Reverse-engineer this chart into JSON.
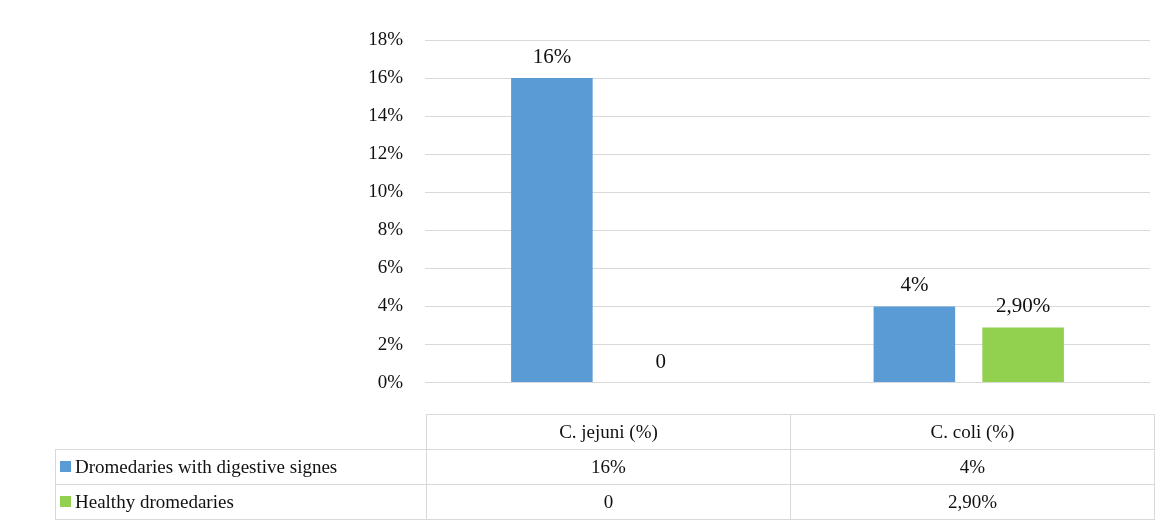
{
  "chart_data": {
    "type": "bar",
    "categories": [
      "C. jejuni (%)",
      "C. coli (%)"
    ],
    "series": [
      {
        "name": "Dromedaries with  digestive signes",
        "color": "#5b9bd5",
        "values": [
          16,
          4
        ],
        "value_labels": [
          "16%",
          "4%"
        ]
      },
      {
        "name": "Healthy dromedaries",
        "color": "#92d050",
        "values": [
          0,
          2.9
        ],
        "value_labels": [
          "0",
          "2,90%"
        ]
      }
    ],
    "ylim": [
      0,
      18
    ],
    "yticks": [
      {
        "value": 0,
        "label": "0%"
      },
      {
        "value": 2,
        "label": "2%"
      },
      {
        "value": 4,
        "label": "4%"
      },
      {
        "value": 6,
        "label": "6%"
      },
      {
        "value": 8,
        "label": "8%"
      },
      {
        "value": 10,
        "label": "10%"
      },
      {
        "value": 12,
        "label": "12%"
      },
      {
        "value": 14,
        "label": "14%"
      },
      {
        "value": 16,
        "label": "16%"
      },
      {
        "value": 18,
        "label": "18%"
      }
    ],
    "grid": "y",
    "legend": "bottom"
  }
}
